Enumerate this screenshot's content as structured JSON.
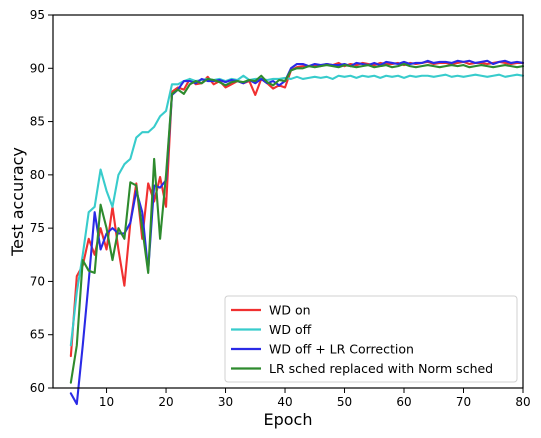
{
  "chart_data": {
    "type": "line",
    "title": "",
    "xlabel": "Epoch",
    "ylabel": "Test accuracy",
    "xlim": [
      1,
      80
    ],
    "ylim": [
      60,
      95
    ],
    "xticks": [
      10,
      20,
      30,
      40,
      50,
      60,
      70,
      80
    ],
    "yticks": [
      60,
      65,
      70,
      75,
      80,
      85,
      90,
      95
    ],
    "grid": false,
    "legend_position": "lower-right",
    "series": [
      {
        "name": "WD on",
        "color": "#f03030",
        "x": [
          4,
          5,
          6,
          7,
          8,
          9,
          10,
          11,
          12,
          13,
          14,
          15,
          16,
          17,
          18,
          19,
          20,
          21,
          22,
          23,
          24,
          25,
          26,
          27,
          28,
          29,
          30,
          31,
          32,
          33,
          34,
          35,
          36,
          37,
          38,
          39,
          40,
          41,
          42,
          43,
          44,
          45,
          46,
          47,
          48,
          49,
          50,
          51,
          52,
          53,
          54,
          55,
          56,
          57,
          58,
          59,
          60,
          61,
          62,
          63,
          64,
          65,
          66,
          67,
          68,
          69,
          70,
          71,
          72,
          73,
          74,
          75,
          76,
          77,
          78,
          79,
          80
        ],
        "y": [
          63.0,
          70.5,
          71.5,
          74.0,
          72.5,
          75.0,
          73.0,
          77.0,
          73.0,
          69.6,
          75.5,
          79.2,
          74.0,
          79.2,
          77.5,
          79.8,
          77.0,
          87.8,
          88.2,
          88.0,
          89.0,
          88.5,
          88.6,
          89.2,
          88.5,
          88.8,
          88.2,
          88.5,
          88.8,
          88.6,
          88.8,
          87.5,
          89.0,
          88.6,
          88.1,
          88.4,
          88.2,
          89.8,
          90.1,
          90.2,
          90.2,
          90.3,
          90.2,
          90.4,
          90.3,
          90.5,
          90.2,
          90.4,
          90.3,
          90.5,
          90.4,
          90.3,
          90.5,
          90.4,
          90.4,
          90.5,
          90.3,
          90.5,
          90.4,
          90.5,
          90.6,
          90.4,
          90.5,
          90.5,
          90.4,
          90.5,
          90.6,
          90.4,
          90.5,
          90.5,
          90.4,
          90.5,
          90.6,
          90.5,
          90.4,
          90.5,
          90.5
        ]
      },
      {
        "name": "WD off",
        "color": "#38cccc",
        "x": [
          4,
          5,
          6,
          7,
          8,
          9,
          10,
          11,
          12,
          13,
          14,
          15,
          16,
          17,
          18,
          19,
          20,
          21,
          22,
          23,
          24,
          25,
          26,
          27,
          28,
          29,
          30,
          31,
          32,
          33,
          34,
          35,
          36,
          37,
          38,
          39,
          40,
          41,
          42,
          43,
          44,
          45,
          46,
          47,
          48,
          49,
          50,
          51,
          52,
          53,
          54,
          55,
          56,
          57,
          58,
          59,
          60,
          61,
          62,
          63,
          64,
          65,
          66,
          67,
          68,
          69,
          70,
          71,
          72,
          73,
          74,
          75,
          76,
          77,
          78,
          79,
          80
        ],
        "y": [
          64.0,
          69.0,
          72.5,
          76.5,
          77.0,
          80.5,
          78.5,
          77.0,
          80.0,
          81.0,
          81.5,
          83.5,
          84.0,
          84.0,
          84.5,
          85.5,
          86.0,
          88.5,
          88.5,
          88.8,
          89.0,
          88.8,
          88.9,
          89.0,
          88.9,
          89.0,
          88.8,
          89.0,
          88.9,
          89.3,
          88.9,
          89.0,
          89.0,
          88.9,
          89.0,
          89.0,
          89.1,
          89.0,
          89.2,
          89.0,
          89.1,
          89.2,
          89.1,
          89.2,
          89.0,
          89.3,
          89.2,
          89.3,
          89.1,
          89.3,
          89.2,
          89.3,
          89.1,
          89.3,
          89.2,
          89.3,
          89.1,
          89.3,
          89.2,
          89.3,
          89.3,
          89.2,
          89.3,
          89.4,
          89.2,
          89.3,
          89.2,
          89.3,
          89.4,
          89.3,
          89.2,
          89.3,
          89.4,
          89.2,
          89.3,
          89.4,
          89.3
        ]
      },
      {
        "name": "WD off + LR Correction",
        "color": "#2a2ae6",
        "x": [
          4,
          5,
          6,
          7,
          8,
          9,
          10,
          11,
          12,
          13,
          14,
          15,
          16,
          17,
          18,
          19,
          20,
          21,
          22,
          23,
          24,
          25,
          26,
          27,
          28,
          29,
          30,
          31,
          32,
          33,
          34,
          35,
          36,
          37,
          38,
          39,
          40,
          41,
          42,
          43,
          44,
          45,
          46,
          47,
          48,
          49,
          50,
          51,
          52,
          53,
          54,
          55,
          56,
          57,
          58,
          59,
          60,
          61,
          62,
          63,
          64,
          65,
          66,
          67,
          68,
          69,
          70,
          71,
          72,
          73,
          74,
          75,
          76,
          77,
          78,
          79,
          80
        ],
        "y": [
          59.5,
          58.5,
          64.0,
          70.0,
          76.5,
          73.0,
          74.5,
          75.0,
          74.5,
          74.5,
          75.5,
          78.5,
          76.5,
          71.0,
          79.0,
          78.8,
          79.5,
          87.5,
          88.0,
          88.8,
          88.8,
          88.6,
          89.0,
          88.8,
          88.8,
          88.9,
          88.7,
          88.9,
          88.8,
          88.6,
          88.9,
          88.6,
          89.0,
          88.6,
          88.8,
          88.4,
          88.8,
          90.0,
          90.4,
          90.4,
          90.2,
          90.4,
          90.3,
          90.4,
          90.3,
          90.3,
          90.4,
          90.2,
          90.5,
          90.4,
          90.3,
          90.5,
          90.3,
          90.6,
          90.5,
          90.4,
          90.6,
          90.4,
          90.5,
          90.5,
          90.7,
          90.5,
          90.6,
          90.6,
          90.5,
          90.7,
          90.6,
          90.7,
          90.5,
          90.6,
          90.7,
          90.4,
          90.6,
          90.7,
          90.5,
          90.6,
          90.5
        ]
      },
      {
        "name": "LR sched replaced with Norm sched",
        "color": "#2e8b2e",
        "x": [
          4,
          5,
          6,
          7,
          8,
          9,
          10,
          11,
          12,
          13,
          14,
          15,
          16,
          17,
          18,
          19,
          20,
          21,
          22,
          23,
          24,
          25,
          26,
          27,
          28,
          29,
          30,
          31,
          32,
          33,
          34,
          35,
          36,
          37,
          38,
          39,
          40,
          41,
          42,
          43,
          44,
          45,
          46,
          47,
          48,
          49,
          50,
          51,
          52,
          53,
          54,
          55,
          56,
          57,
          58,
          59,
          60,
          61,
          62,
          63,
          64,
          65,
          66,
          67,
          68,
          69,
          70,
          71,
          72,
          73,
          74,
          75,
          76,
          77,
          78,
          79,
          80
        ],
        "y": [
          60.5,
          64.0,
          72.0,
          71.0,
          70.8,
          77.2,
          75.0,
          72.0,
          75.0,
          74.0,
          79.3,
          79.0,
          75.0,
          70.8,
          81.5,
          74.0,
          80.0,
          87.6,
          88.0,
          87.6,
          88.5,
          88.8,
          88.6,
          89.0,
          88.9,
          88.7,
          88.4,
          88.7,
          88.8,
          88.7,
          88.9,
          88.8,
          89.3,
          88.7,
          88.4,
          88.9,
          88.8,
          89.8,
          90.0,
          90.0,
          90.2,
          90.1,
          90.2,
          90.3,
          90.2,
          90.1,
          90.3,
          90.2,
          90.1,
          90.2,
          90.3,
          90.1,
          90.2,
          90.3,
          90.1,
          90.2,
          90.4,
          90.2,
          90.1,
          90.2,
          90.3,
          90.2,
          90.1,
          90.2,
          90.3,
          90.2,
          90.3,
          90.1,
          90.2,
          90.3,
          90.2,
          90.1,
          90.2,
          90.3,
          90.2,
          90.1,
          90.2
        ]
      }
    ]
  }
}
